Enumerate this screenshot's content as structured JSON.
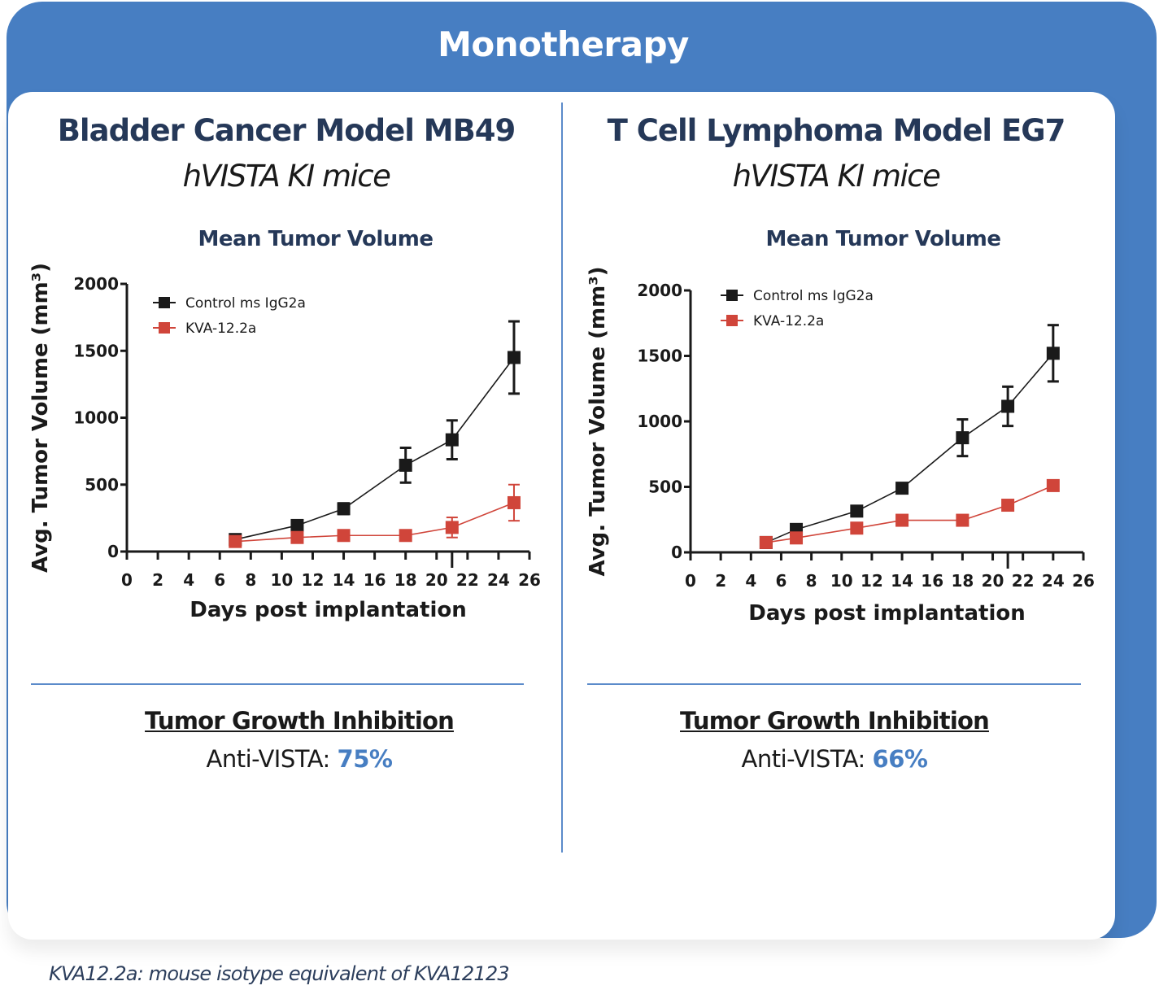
{
  "header": {
    "title": "Monotherapy"
  },
  "panels": [
    {
      "model_title": "Bladder Cancer Model MB49",
      "model_subtitle": "hVISTA KI mice",
      "chart_title": "Mean Tumor Volume",
      "tgi_title": "Tumor Growth Inhibition",
      "tgi_label": "Anti-VISTA: ",
      "tgi_value": "75%"
    },
    {
      "model_title": "T Cell Lymphoma Model EG7",
      "model_subtitle": "hVISTA KI mice",
      "chart_title": "Mean Tumor Volume",
      "tgi_title": "Tumor Growth Inhibition",
      "tgi_label": "Anti-VISTA: ",
      "tgi_value": "66%"
    }
  ],
  "footnote": "KVA12.2a: mouse isotype equivalent of KVA12123",
  "colors": {
    "brand_blue": "#477ec2",
    "navy": "#253858",
    "control": "#1a1a1a",
    "treatment": "#d0453a"
  },
  "chart_data": [
    {
      "type": "line",
      "title": "Mean Tumor Volume",
      "xlabel": "Days post implantation",
      "ylabel": "Avg. Tumor Volume (mm³)",
      "xlim": [
        0,
        26
      ],
      "ylim": [
        0,
        2000
      ],
      "xticks": [
        0,
        2,
        4,
        6,
        8,
        10,
        12,
        14,
        16,
        18,
        20,
        22,
        24,
        26
      ],
      "yticks": [
        0,
        500,
        1000,
        1500,
        2000
      ],
      "legend_position": "top-left",
      "grid": false,
      "series": [
        {
          "name": "Control ms IgG2a",
          "color": "#1a1a1a",
          "x": [
            7,
            11,
            14,
            18,
            21,
            25
          ],
          "y": [
            90,
            195,
            320,
            645,
            835,
            1450
          ],
          "err": [
            15,
            25,
            40,
            130,
            145,
            270
          ]
        },
        {
          "name": "KVA-12.2a",
          "color": "#d0453a",
          "x": [
            7,
            11,
            14,
            18,
            21,
            25
          ],
          "y": [
            75,
            105,
            120,
            120,
            180,
            365
          ],
          "err": [
            10,
            15,
            15,
            40,
            75,
            135
          ]
        }
      ]
    },
    {
      "type": "line",
      "title": "Mean Tumor Volume",
      "xlabel": "Days post implantation",
      "ylabel": "Avg. Tumor Volume (mm³)",
      "xlim": [
        0,
        26
      ],
      "ylim": [
        0,
        2000
      ],
      "xticks": [
        0,
        2,
        4,
        6,
        8,
        10,
        12,
        14,
        16,
        18,
        20,
        22,
        24,
        26
      ],
      "yticks": [
        0,
        500,
        1000,
        1500,
        2000
      ],
      "legend_position": "top-left",
      "grid": false,
      "series": [
        {
          "name": "Control ms IgG2a",
          "color": "#1a1a1a",
          "x": [
            5,
            7,
            11,
            14,
            18,
            21,
            24
          ],
          "y": [
            75,
            175,
            315,
            490,
            875,
            1115,
            1520
          ],
          "err": [
            10,
            15,
            20,
            25,
            140,
            150,
            215
          ]
        },
        {
          "name": "KVA-12.2a",
          "color": "#d0453a",
          "x": [
            5,
            7,
            11,
            14,
            18,
            21,
            24
          ],
          "y": [
            75,
            110,
            185,
            245,
            245,
            360,
            510
          ],
          "err": [
            10,
            15,
            15,
            15,
            15,
            20,
            30
          ]
        }
      ]
    }
  ]
}
